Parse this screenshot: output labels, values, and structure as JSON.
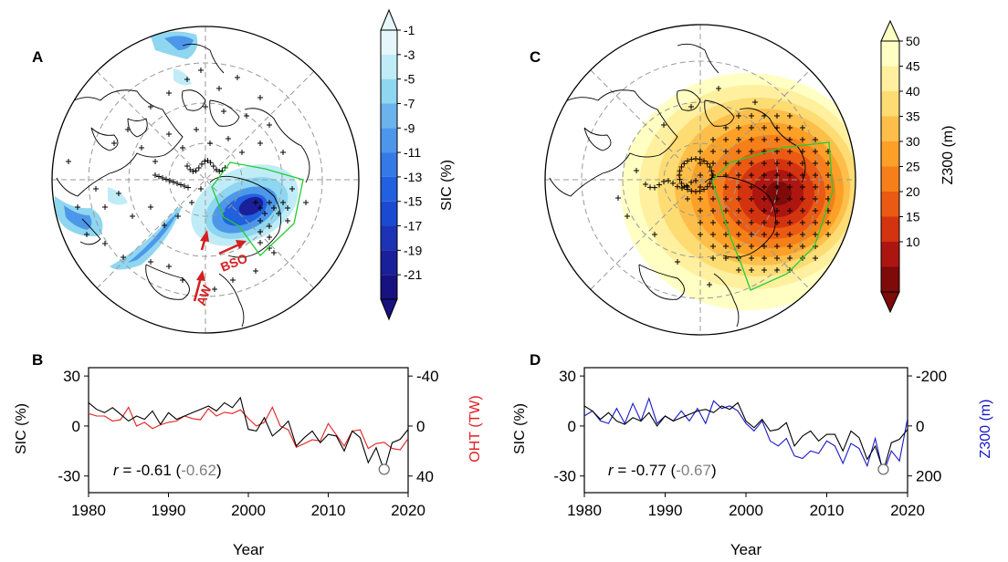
{
  "panels": {
    "A": {
      "label": "A",
      "colorbar_title": "SIC  (%)",
      "ticks": [
        "-1",
        "-3",
        "-5",
        "-7",
        "-9",
        "-11",
        "-13",
        "-15",
        "-17",
        "-19",
        "-21"
      ],
      "annotations": [
        "AW",
        "BSO"
      ]
    },
    "C": {
      "label": "C",
      "colorbar_title": "Z300 (m)",
      "ticks": [
        "50",
        "45",
        "40",
        "35",
        "30",
        "25",
        "20",
        "15",
        "10"
      ]
    },
    "B": {
      "label": "B",
      "ylabel_left": "SIC (%)",
      "ylabel_right": "OHT (TW)",
      "xlabel": "Year",
      "left_ticks": [
        "30",
        "0",
        "-30"
      ],
      "right_ticks": [
        "-40",
        "0",
        "40"
      ],
      "x_ticks": [
        "1980",
        "1990",
        "2000",
        "2010",
        "2020"
      ],
      "r_label": "r",
      "r_text": " = -0.61 (",
      "r_gray": "-0.62",
      "r_close": ")"
    },
    "D": {
      "label": "D",
      "ylabel_left": "SIC (%)",
      "ylabel_right": "Z300 (m)",
      "xlabel": "Year",
      "left_ticks": [
        "30",
        "0",
        "-30"
      ],
      "right_ticks": [
        "-200",
        "0",
        "200"
      ],
      "x_ticks": [
        "1980",
        "1990",
        "2000",
        "2010",
        "2020"
      ],
      "r_label": "r",
      "r_text": " = -0.77 (",
      "r_gray": "-0.67",
      "r_close": ")"
    }
  },
  "colors": {
    "sic_scale": [
      "#e6f7fb",
      "#c0ecf7",
      "#8fd6f0",
      "#6cb3ee",
      "#4d97ea",
      "#3479e6",
      "#2160df",
      "#1a4ad1",
      "#1b33b4",
      "#1a1f9a",
      "#17127f"
    ],
    "z300_scale": [
      "#ffffc4",
      "#fff0a0",
      "#fedc74",
      "#fdbf4a",
      "#fca027",
      "#f67f1a",
      "#ea5a13",
      "#d4330f",
      "#ad1610",
      "#7e0a0a"
    ],
    "sic_line": "#000000",
    "oht_line": "#e02020",
    "z300_line": "#1818c8",
    "box": "#22cc33",
    "arrow": "#d42020"
  },
  "chart_data": [
    {
      "type": "line",
      "panel": "B",
      "x": [
        1979,
        1980,
        1981,
        1982,
        1983,
        1984,
        1985,
        1986,
        1987,
        1988,
        1989,
        1990,
        1991,
        1992,
        1993,
        1994,
        1995,
        1996,
        1997,
        1998,
        1999,
        2000,
        2001,
        2002,
        2003,
        2004,
        2005,
        2006,
        2007,
        2008,
        2009,
        2010,
        2011,
        2012,
        2013,
        2014,
        2015,
        2016,
        2017,
        2018,
        2019,
        2020
      ],
      "series": [
        {
          "name": "SIC (%)",
          "axis": "left",
          "values": [
            12,
            14,
            10,
            8,
            11,
            7,
            3,
            6,
            4,
            9,
            1,
            8,
            4,
            6,
            8,
            10,
            12,
            9,
            14,
            11,
            17,
            -2,
            -3,
            5,
            -6,
            -2,
            3,
            -12,
            -7,
            -3,
            -10,
            -5,
            -6,
            -15,
            -3,
            -7,
            -22,
            -13,
            -27,
            -10,
            -8,
            -2
          ]
        },
        {
          "name": "OHT (TW)",
          "axis": "right",
          "values": [
            -12,
            -10,
            -8,
            -8,
            -4,
            -5,
            -15,
            0,
            -3,
            2,
            -1,
            -3,
            -4,
            -8,
            -6,
            -5,
            -14,
            -8,
            -11,
            -10,
            -13,
            -6,
            0,
            -3,
            -15,
            0,
            3,
            17,
            14,
            11,
            12,
            -2,
            7,
            16,
            4,
            3,
            18,
            14,
            13,
            18,
            19,
            10
          ]
        }
      ],
      "xlabel": "Year",
      "xlim": [
        1980,
        2020
      ],
      "ylim_left": [
        -40,
        35
      ],
      "yticks_left": [
        30,
        0,
        -30
      ],
      "ylim_right": [
        53.3,
        -46.7
      ],
      "yticks_right": [
        -40,
        0,
        40
      ],
      "marker": {
        "x": 2017,
        "y": -26,
        "shape": "open-circle"
      },
      "annotation": "r = -0.61 (-0.62)"
    },
    {
      "type": "line",
      "panel": "D",
      "x": [
        1979,
        1980,
        1981,
        1982,
        1983,
        1984,
        1985,
        1986,
        1987,
        1988,
        1989,
        1990,
        1991,
        1992,
        1993,
        1994,
        1995,
        1996,
        1997,
        1998,
        1999,
        2000,
        2001,
        2002,
        2003,
        2004,
        2005,
        2006,
        2007,
        2008,
        2009,
        2010,
        2011,
        2012,
        2013,
        2014,
        2015,
        2016,
        2017,
        2018,
        2019,
        2020
      ],
      "series": [
        {
          "name": "SIC (%)",
          "axis": "left",
          "values": [
            10,
            12,
            9,
            4,
            8,
            3,
            1,
            5,
            3,
            8,
            0,
            6,
            3,
            5,
            7,
            9,
            10,
            8,
            12,
            10,
            14,
            3,
            -1,
            4,
            -3,
            -2,
            2,
            -12,
            -6,
            -3,
            -9,
            -5,
            -5,
            -15,
            -3,
            -7,
            -20,
            -12,
            -27,
            -10,
            -8,
            -2
          ]
        },
        {
          "name": "Z300 (m)",
          "axis": "right",
          "values": [
            0,
            -40,
            -60,
            -20,
            -10,
            -70,
            -10,
            -90,
            -20,
            -110,
            -10,
            -40,
            -20,
            -60,
            -20,
            -70,
            -10,
            -100,
            -70,
            -80,
            -60,
            -10,
            20,
            -20,
            60,
            80,
            50,
            120,
            130,
            100,
            110,
            60,
            80,
            150,
            70,
            90,
            160,
            50,
            190,
            100,
            140,
            -30
          ]
        }
      ],
      "xlabel": "Year",
      "xlim": [
        1980,
        2020
      ],
      "ylim_left": [
        -40,
        35
      ],
      "yticks_left": [
        30,
        0,
        -30
      ],
      "ylim_right": [
        267,
        -233
      ],
      "yticks_right": [
        -200,
        0,
        200
      ],
      "marker": {
        "x": 2017,
        "y": -26,
        "shape": "open-circle"
      },
      "annotation": "r = -0.77 (-0.67)"
    }
  ]
}
